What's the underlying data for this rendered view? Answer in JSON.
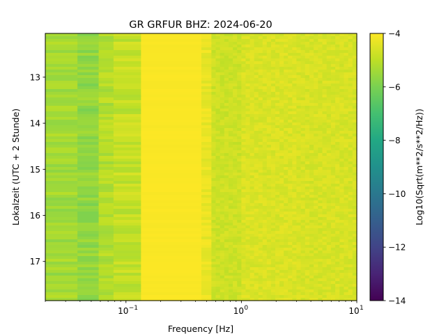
{
  "chart_data": {
    "type": "heatmap",
    "title": "GR GRFUR  BHZ: 2024-06-20",
    "xlabel": "Frequency [Hz]",
    "ylabel": "Lokalzeit (UTC + 2 Stunde)",
    "x_scale": "log",
    "xlim": [
      0.02,
      10
    ],
    "ylim": [
      12.05,
      17.85
    ],
    "y_inverted": true,
    "x_ticks": [
      {
        "value": 0.1,
        "base": "10",
        "exp": "−1"
      },
      {
        "value": 1,
        "base": "10",
        "exp": "0"
      },
      {
        "value": 10,
        "base": "10",
        "exp": "1"
      }
    ],
    "y_ticks": [
      {
        "value": 13,
        "label": "13"
      },
      {
        "value": 14,
        "label": "14"
      },
      {
        "value": 15,
        "label": "15"
      },
      {
        "value": 16,
        "label": "16"
      },
      {
        "value": 17,
        "label": "17"
      }
    ],
    "colorbar": {
      "label": "Log10(Sqrt(m**2/s**2/Hz))",
      "colormap": "viridis",
      "min": -14,
      "max": -4,
      "ticks": [
        {
          "value": -4,
          "label": "−4"
        },
        {
          "value": -6,
          "label": "−6"
        },
        {
          "value": -8,
          "label": "−8"
        },
        {
          "value": -10,
          "label": "−10"
        },
        {
          "value": -12,
          "label": "−12"
        },
        {
          "value": -14,
          "label": "−14"
        }
      ]
    },
    "frequency_bands": [
      {
        "f_min": 0.02,
        "f_max": 0.038,
        "level": -5.4
      },
      {
        "f_min": 0.038,
        "f_max": 0.058,
        "level": -5.65
      },
      {
        "f_min": 0.058,
        "f_max": 0.078,
        "level": -5.15
      },
      {
        "f_min": 0.078,
        "f_max": 0.135,
        "level": -4.9
      },
      {
        "f_min": 0.135,
        "f_max": 0.45,
        "level": -4.05
      },
      {
        "f_min": 0.45,
        "f_max": 0.55,
        "level": -4.3
      },
      {
        "f_min": 0.55,
        "f_max": 1.0,
        "level": -4.75
      },
      {
        "f_min": 1.0,
        "f_max": 3.0,
        "level": -4.55
      },
      {
        "f_min": 3.0,
        "f_max": 10,
        "level": -4.6
      }
    ]
  }
}
